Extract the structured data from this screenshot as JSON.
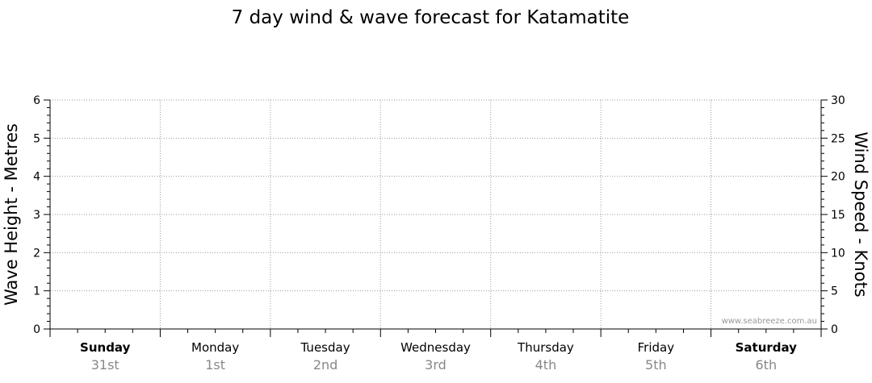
{
  "chart_data": {
    "type": "line",
    "title": "7 day wind & wave forecast for Katamatite",
    "ylabel_left": "Wave Height - Metres",
    "ylabel_right": "Wind Speed - Knots",
    "ylim_left": [
      0,
      6
    ],
    "ylim_right": [
      0,
      30
    ],
    "left_ticks": [
      "0",
      "1",
      "2",
      "3",
      "4",
      "5",
      "6"
    ],
    "right_ticks": [
      "0",
      "5",
      "10",
      "15",
      "20",
      "25",
      "30"
    ],
    "days": [
      {
        "name": "Sunday",
        "date": "31st",
        "bold": true
      },
      {
        "name": "Monday",
        "date": "1st",
        "bold": false
      },
      {
        "name": "Tuesday",
        "date": "2nd",
        "bold": false
      },
      {
        "name": "Wednesday",
        "date": "3rd",
        "bold": false
      },
      {
        "name": "Thursday",
        "date": "4th",
        "bold": false
      },
      {
        "name": "Friday",
        "date": "5th",
        "bold": false
      },
      {
        "name": "Saturday",
        "date": "6th",
        "bold": true
      }
    ],
    "grid": true,
    "series": []
  },
  "watermark": "www.seabreeze.com.au"
}
